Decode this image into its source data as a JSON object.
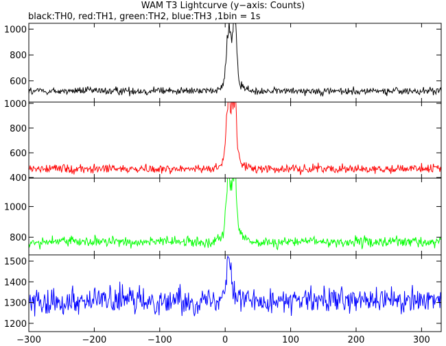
{
  "title": "WAM T3 Lightcurve (y−axis: Counts)",
  "subtitle": "black:TH0, red:TH1, green:TH2, blue:TH3 ,1bin = 1s",
  "chart_data": {
    "type": "line",
    "title": "WAM T3 Lightcurve (y−axis: Counts)",
    "subtitle": "black:TH0, red:TH1, green:TH2, blue:TH3 ,1bin = 1s",
    "ylabel": "Counts",
    "x_range": [
      -300,
      330
    ],
    "x_ticks": [
      -300,
      -200,
      -100,
      0,
      100,
      200,
      300
    ],
    "x_tick_labels": [
      "−300",
      "−200",
      "−100",
      "0",
      "100",
      "200",
      "300"
    ],
    "panels": [
      {
        "series_label": "TH0",
        "color": "#000000",
        "ylim": [
          435,
          1045
        ],
        "y_ticks": [
          600,
          800,
          1000
        ],
        "y_tick_labels": [
          "600",
          "800",
          "1000"
        ],
        "baseline": 520,
        "noise": 22,
        "peaks": [
          {
            "x": 5,
            "value": 960
          },
          {
            "x": 14,
            "value": 1020
          }
        ]
      },
      {
        "series_label": "TH1",
        "color": "#ff0000",
        "ylim": [
          395,
          1010
        ],
        "y_ticks": [
          400,
          600,
          800,
          1000
        ],
        "y_tick_labels": [
          "400",
          "600",
          "800",
          "1000"
        ],
        "baseline": 470,
        "noise": 25,
        "peaks": [
          {
            "x": 5,
            "value": 1000
          },
          {
            "x": 14,
            "value": 990
          }
        ]
      },
      {
        "series_label": "TH2",
        "color": "#00ff00",
        "ylim": [
          685,
          1185
        ],
        "y_ticks": [
          800,
          1000
        ],
        "y_tick_labels": [
          "800",
          "1000"
        ],
        "baseline": 770,
        "noise": 25,
        "peaks": [
          {
            "x": 5,
            "value": 1180
          },
          {
            "x": 14,
            "value": 1170
          }
        ]
      },
      {
        "series_label": "TH3",
        "color": "#0000ff",
        "ylim": [
          1160,
          1530
        ],
        "y_ticks": [
          1200,
          1300,
          1400,
          1500
        ],
        "y_tick_labels": [
          "1200",
          "1300",
          "1400",
          "1500"
        ],
        "baseline": 1310,
        "noise": 45,
        "peaks": [
          {
            "x": 5,
            "value": 1525
          }
        ]
      }
    ]
  }
}
